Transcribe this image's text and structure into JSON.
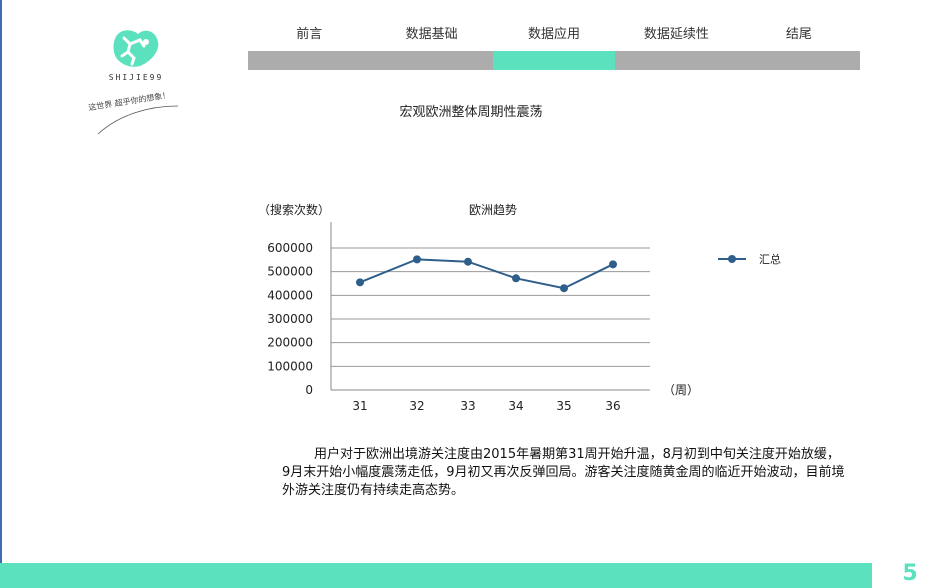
{
  "logo": {
    "brand": "SHIJIE99",
    "slogan": "这世界 超乎你的想象！"
  },
  "nav": {
    "tabs": [
      {
        "label": "前言",
        "active": false
      },
      {
        "label": "数据基础",
        "active": false
      },
      {
        "label": "数据应用",
        "active": true
      },
      {
        "label": "数据延续性",
        "active": false
      },
      {
        "label": "结尾",
        "active": false
      }
    ]
  },
  "section_title": "宏观欧洲整体周期性震荡",
  "chart_data": {
    "type": "line",
    "title": "欧洲趋势",
    "ylabel": "（搜索次数）",
    "xlabel": "（周）",
    "categories": [
      "31",
      "32",
      "33",
      "34",
      "35",
      "36"
    ],
    "series": [
      {
        "name": "汇总",
        "values": [
          455000,
          552000,
          542000,
          472000,
          430000,
          531000
        ]
      }
    ],
    "ylim": [
      0,
      600000
    ],
    "yticks": [
      "0",
      "100000",
      "200000",
      "300000",
      "400000",
      "500000",
      "600000"
    ],
    "grid": true,
    "legend": "right",
    "color": "#2e5f8a"
  },
  "body_text": "用户对于欧洲出境游关注度由2015年暑期第31周开始升温，8月初到中旬关注度开始放缓，9月末开始小幅度震荡走低，9月初又再次反弹回局。游客关注度随黄金周的临近开始波动，目前境外游关注度仍有持续走高态势。",
  "page_number": "5",
  "colors": {
    "accent": "#5ce1be",
    "nav_gray": "#acacac",
    "series": "#2e5f8a"
  }
}
